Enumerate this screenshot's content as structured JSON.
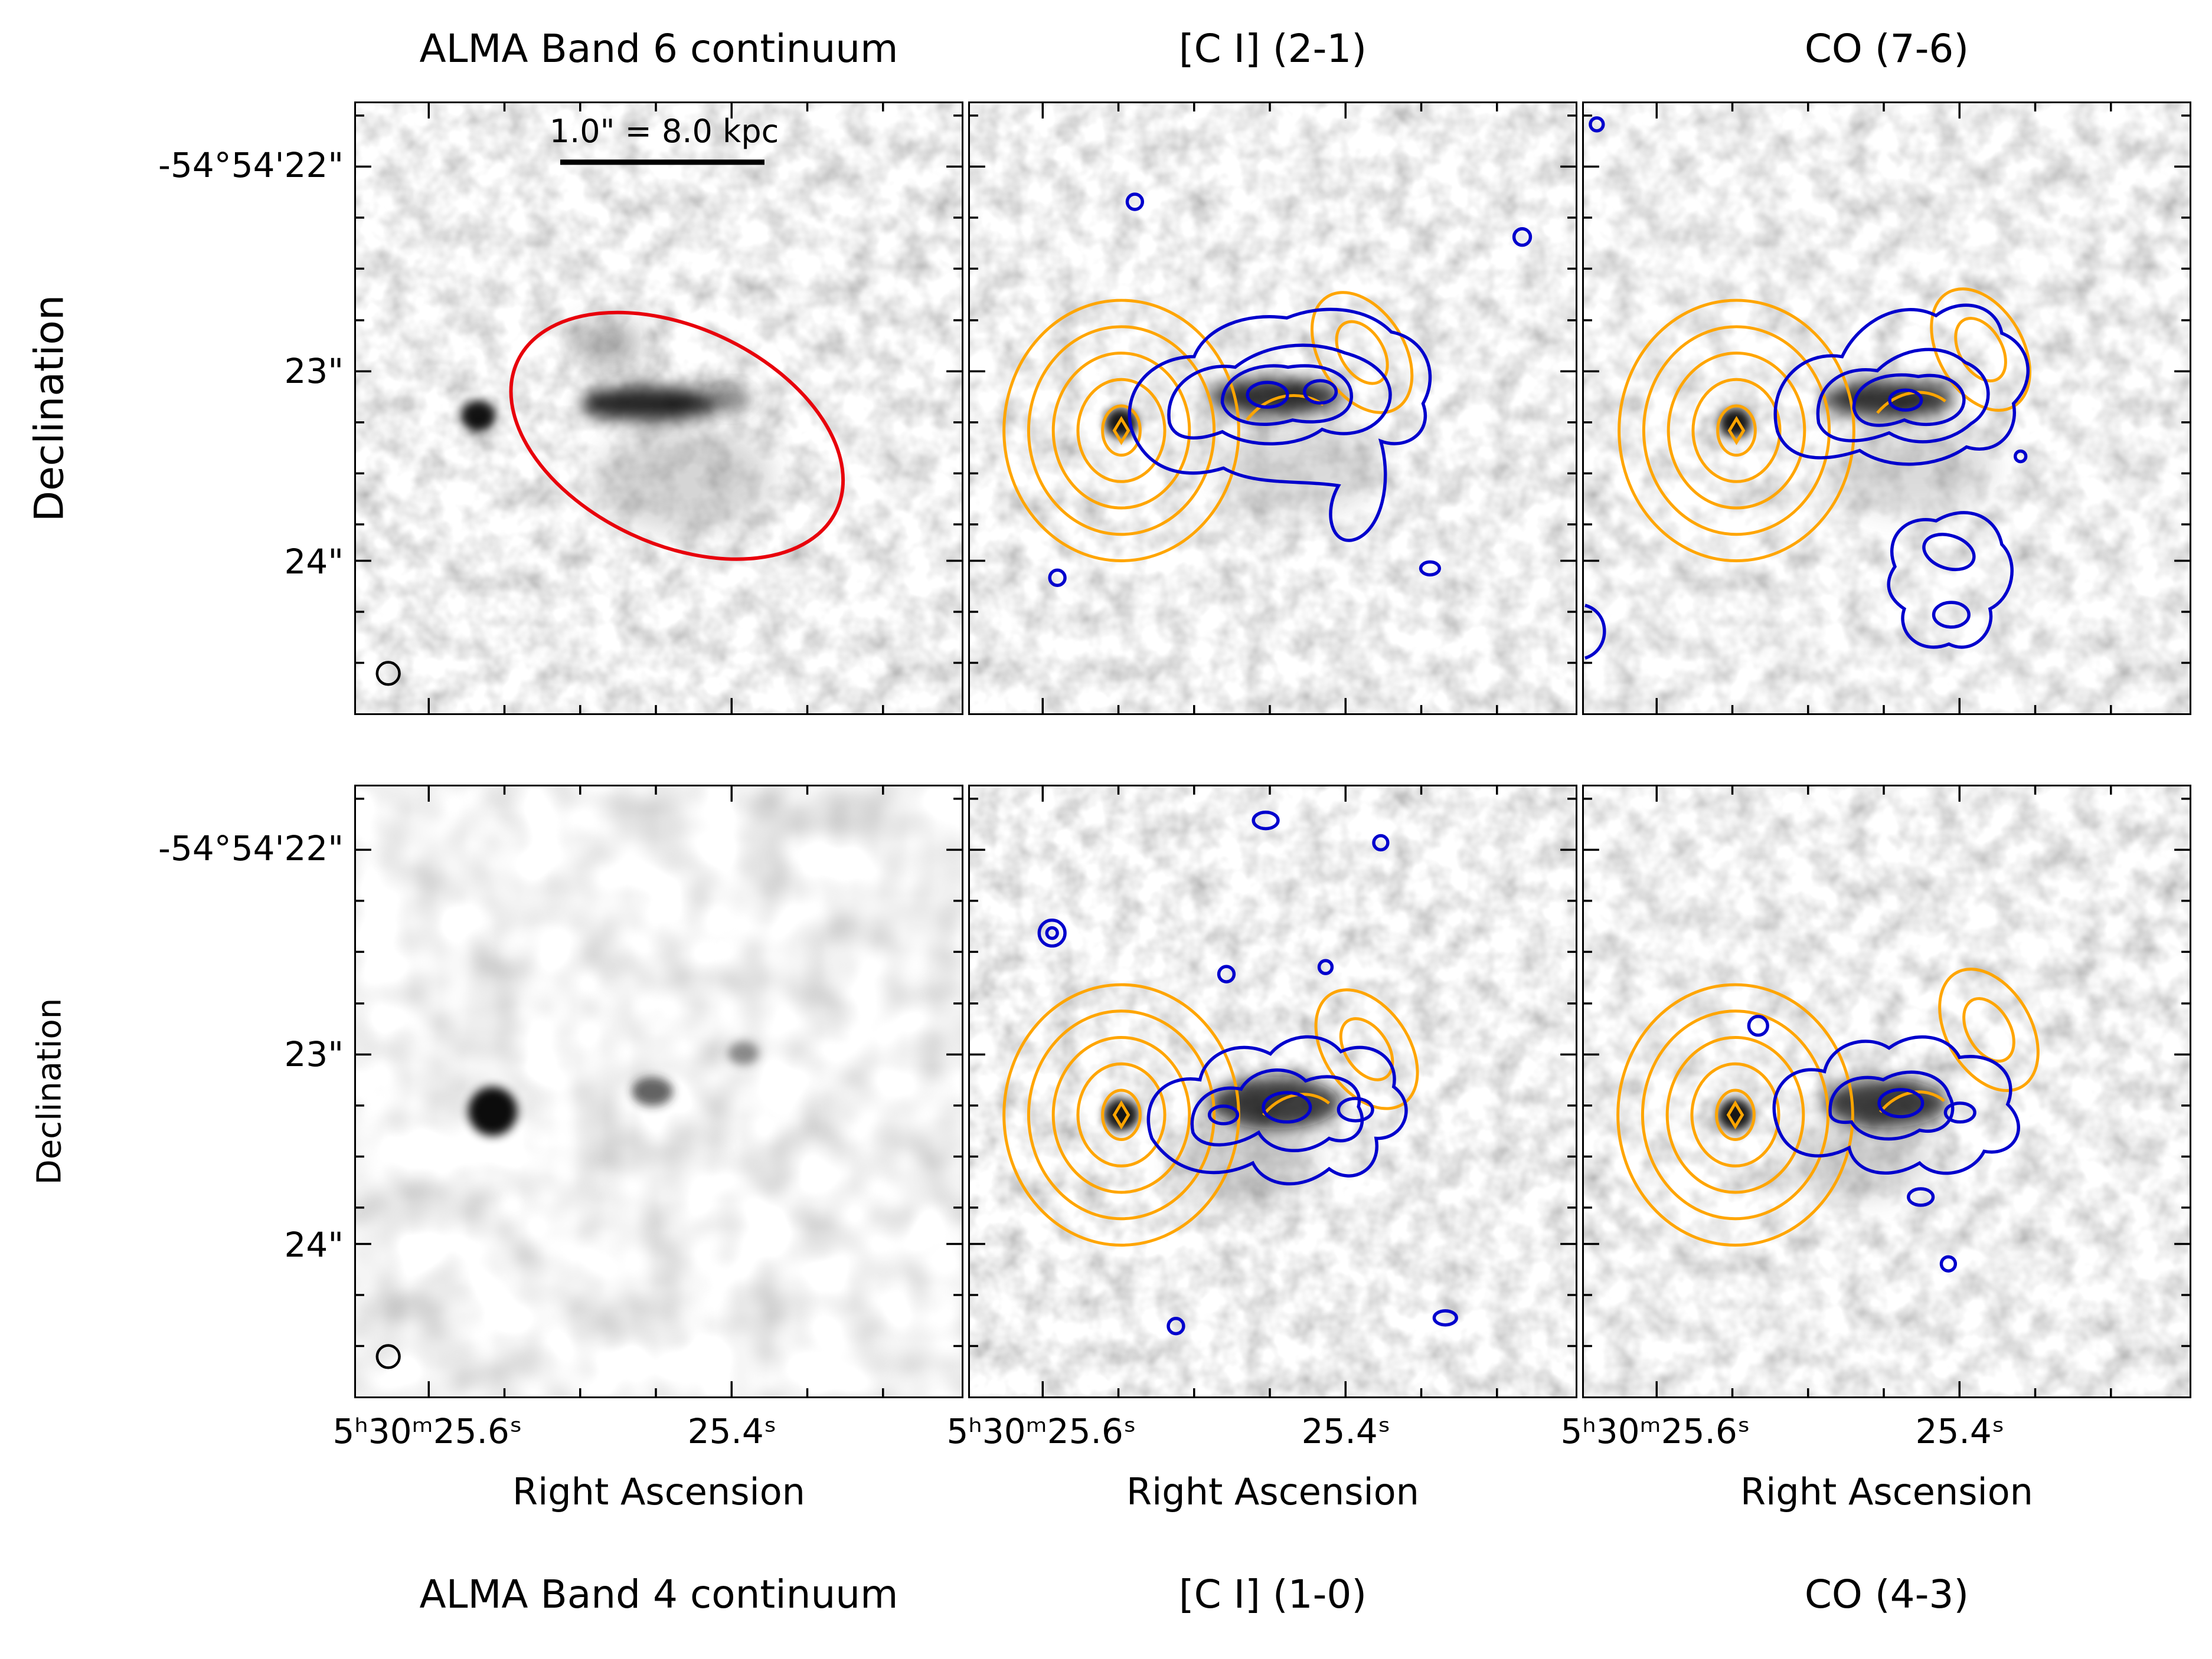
{
  "figure": {
    "top_titles": [
      "ALMA Band 6 continuum",
      "[C I] (2-1)",
      "CO (7-6)"
    ],
    "bottom_titles": [
      "ALMA Band 4 continuum",
      "[C I] (1-0)",
      "CO (4-3)"
    ],
    "axes": {
      "x_label": "Right Ascension",
      "y_label": "Declination",
      "x_ticks": [
        "5ʰ30ᵐ25.6ˢ",
        "25.4ˢ"
      ],
      "y_ticks": [
        "-54°54'22\"",
        "23\"",
        "24\""
      ]
    },
    "scalebar_label": "1.0\" = 8.0 kpc",
    "colors": {
      "continuum_contours": "#FFA500",
      "line_emission_contours": "#0000CD",
      "annotation_ellipse": "#E8000B",
      "beam_marker": "#000000",
      "background": "#FFFFFF"
    }
  },
  "chart_data": {
    "type": "heatmap",
    "layout": "2x3 grid of grayscale ALMA sky maps with shared RA/Dec axes; contour overlays on spectral-line panels",
    "x_axis": {
      "label": "Right Ascension",
      "tick_labels": [
        "5h30m25.6s",
        "25.4s"
      ],
      "ticks_on": "bottom row only"
    },
    "y_axis": {
      "label": "Declination",
      "tick_labels": [
        "-54°54'22\"",
        "23\"",
        "24\""
      ],
      "ticks_on": "left column only"
    },
    "panels": [
      {
        "row": 1,
        "col": 1,
        "title": "ALMA Band 6 continuum",
        "title_position": "top",
        "features": [
          "grayscale continuum map with compact dark source left of center and elongated dark source at center",
          "red ellipse annotation around central source",
          "scale bar labeled 1.0\" = 8.0 kpc",
          "small open beam circle in bottom-left corner"
        ]
      },
      {
        "row": 1,
        "col": 2,
        "title": "[C I] (2-1)",
        "title_position": "top",
        "features": [
          "orange concentric continuum contours on left source",
          "blue nested [C I](2-1) emission contours over central/right structure with southern extension",
          "secondary orange contour loop upper right",
          "small isolated blue noise contours"
        ]
      },
      {
        "row": 1,
        "col": 3,
        "title": "CO (7-6)",
        "title_position": "top",
        "features": [
          "orange concentric continuum contours on left source",
          "compact blue nested CO(7-6) contours at center-right",
          "irregular blue clump to the lower right",
          "secondary orange contour loop upper right",
          "small blue noise contours at edges"
        ]
      },
      {
        "row": 2,
        "col": 1,
        "title": "ALMA Band 4 continuum",
        "title_position": "bottom",
        "features": [
          "smooth grayscale map with one compact dark source left of center and fainter central blobs",
          "small open beam circle in bottom-left corner"
        ]
      },
      {
        "row": 2,
        "col": 2,
        "title": "[C I] (1-0)",
        "title_position": "bottom",
        "features": [
          "orange concentric continuum contours on left source",
          "blue nested [C I](1-0) contours over central structure",
          "several small scattered blue noise contours above and below",
          "secondary orange contour loop upper right"
        ]
      },
      {
        "row": 2,
        "col": 3,
        "title": "CO (4-3)",
        "title_position": "bottom",
        "features": [
          "orange concentric continuum contours on left source",
          "blue nested CO(4-3) contours over central structure",
          "few small blue noise contours",
          "secondary orange contour loop upper right"
        ]
      }
    ],
    "legend": {
      "orange_contours": "continuum emission (concentric levels, diamond at peak)",
      "blue_contours": "line emission (nested irregular levels)",
      "red_ellipse": "source region annotation (top-left panel only)",
      "scale_bar": "1.0\" = 8.0 kpc",
      "beam": "synthesized beam shown as open circle in continuum panels"
    }
  }
}
